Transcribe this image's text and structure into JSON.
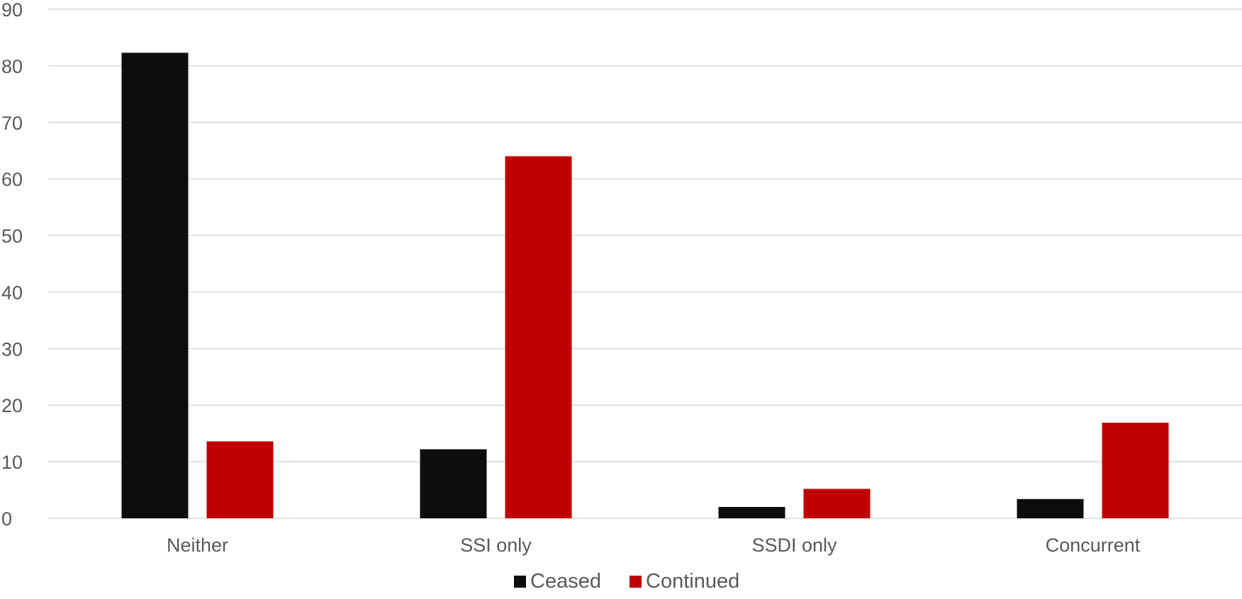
{
  "chart_data": {
    "type": "bar",
    "title": "",
    "xlabel": "",
    "ylabel": "",
    "ylim": [
      0,
      90
    ],
    "y_ticks": [
      0,
      10,
      20,
      30,
      40,
      50,
      60,
      70,
      80,
      90
    ],
    "grid": true,
    "legend_position": "bottom",
    "categories": [
      "Neither",
      "SSI only",
      "SSDI only",
      "Concurrent"
    ],
    "series": [
      {
        "name": "Ceased",
        "color": "#0d0d0d",
        "values": [
          82.3,
          12.2,
          2.0,
          3.4
        ]
      },
      {
        "name": "Continued",
        "color": "#c00000",
        "values": [
          13.6,
          64.0,
          5.2,
          16.9
        ]
      }
    ]
  }
}
